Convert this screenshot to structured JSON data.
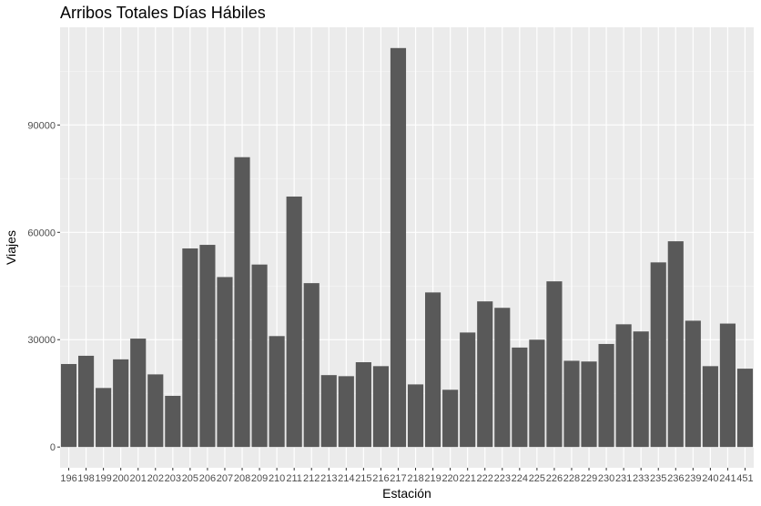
{
  "chart_data": {
    "type": "bar",
    "title": "Arribos Totales Días Hábiles",
    "xlabel": "Estación",
    "ylabel": "Viajes",
    "categories": [
      "196",
      "198",
      "199",
      "200",
      "201",
      "202",
      "203",
      "205",
      "206",
      "207",
      "208",
      "209",
      "210",
      "211",
      "212",
      "213",
      "214",
      "215",
      "216",
      "217",
      "218",
      "219",
      "220",
      "221",
      "222",
      "223",
      "224",
      "225",
      "226",
      "228",
      "229",
      "230",
      "231",
      "233",
      "235",
      "236",
      "239",
      "240",
      "241",
      "451"
    ],
    "values": [
      23200,
      25500,
      16500,
      24500,
      30300,
      20300,
      14300,
      55500,
      56500,
      47500,
      81000,
      51000,
      31000,
      70000,
      45800,
      20100,
      19800,
      23700,
      22600,
      111500,
      17500,
      43200,
      16000,
      32000,
      40700,
      38900,
      27800,
      30000,
      46300,
      24100,
      23900,
      28800,
      34300,
      32300,
      51600,
      57500,
      35300,
      22600,
      34500,
      21900
    ],
    "yticks": [
      0,
      30000,
      60000,
      90000
    ],
    "ylim": [
      -5800,
      117300
    ],
    "grid": true,
    "colors": {
      "bar": "#595959",
      "panel": "#ebebeb",
      "grid_major": "#ffffff",
      "grid_minor": "#f5f5f5"
    }
  }
}
